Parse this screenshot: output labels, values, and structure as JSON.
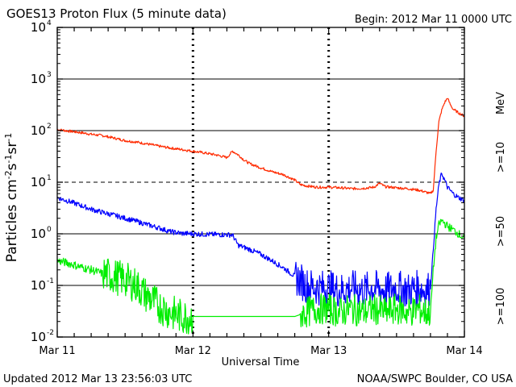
{
  "header": {
    "title": "GOES13 Proton Flux (5 minute data)",
    "begin": "Begin: 2012 Mar 11 0000 UTC"
  },
  "footer": {
    "updated": "Updated 2012 Mar 13 23:56:03 UTC",
    "credit": "NOAA/SWPC Boulder, CO USA"
  },
  "colors": {
    "ge10": "#ff2a00",
    "ge50": "#0000ff",
    "ge100": "#00ee00",
    "axis": "#000000"
  },
  "chart_data": {
    "type": "line",
    "title": "GOES13 Proton Flux (5 minute data)",
    "xlabel": "Universal Time",
    "ylabel": "Particles cm-2s-1sr-1",
    "yscale": "log",
    "ylim": [
      0.01,
      10000
    ],
    "xlim": [
      0,
      72
    ],
    "x_unit": "hours since 2012 Mar 11 0000 UTC",
    "x_ticks": [
      {
        "x": 0,
        "label": "Mar 11"
      },
      {
        "x": 24,
        "label": "Mar 12"
      },
      {
        "x": 48,
        "label": "Mar 13"
      },
      {
        "x": 72,
        "label": "Mar 14"
      }
    ],
    "y_ticks": [
      {
        "value": 0.01,
        "base": "10",
        "exp": "-2"
      },
      {
        "value": 0.1,
        "base": "10",
        "exp": "-1"
      },
      {
        "value": 1,
        "base": "10",
        "exp": "0"
      },
      {
        "value": 10,
        "base": "10",
        "exp": "1"
      },
      {
        "value": 100,
        "base": "10",
        "exp": "2"
      },
      {
        "value": 1000,
        "base": "10",
        "exp": "3"
      },
      {
        "value": 10000,
        "base": "10",
        "exp": "4"
      }
    ],
    "unit_label": "MeV",
    "threshold_line": 10,
    "series": [
      {
        "name": ">=10",
        "color": "#ff2a00",
        "x": [
          0,
          2,
          4,
          6,
          8,
          10,
          12,
          14,
          16,
          18,
          20,
          22,
          24,
          26,
          28,
          30,
          31,
          32,
          33,
          34,
          36,
          38,
          40,
          42,
          43,
          44,
          46,
          48,
          50,
          52,
          54,
          56,
          57,
          58,
          60,
          62,
          64,
          65,
          66,
          66.5,
          67,
          67.5,
          68,
          68.5,
          69,
          69.5,
          70,
          71,
          72
        ],
        "values": [
          105,
          98,
          92,
          85,
          80,
          72,
          64,
          60,
          55,
          50,
          46,
          43,
          40,
          37,
          34,
          30,
          40,
          34,
          27,
          23,
          19,
          16,
          14,
          11,
          9,
          8.5,
          8,
          8,
          7.8,
          7.5,
          7.6,
          8,
          9.5,
          8.2,
          7.8,
          7.5,
          7,
          6.5,
          6,
          7,
          40,
          150,
          250,
          350,
          430,
          320,
          260,
          220,
          190
        ]
      },
      {
        "name": ">=50",
        "color": "#0000ff",
        "x": [
          0,
          2,
          4,
          6,
          8,
          10,
          12,
          14,
          16,
          18,
          20,
          22,
          24,
          26,
          28,
          30,
          31,
          32,
          34,
          36,
          38,
          40,
          42,
          44,
          46,
          48,
          50,
          52,
          54,
          56,
          58,
          60,
          62,
          64,
          65,
          66,
          66.5,
          67,
          67.5,
          68,
          68.5,
          69,
          70,
          71,
          72
        ],
        "values": [
          5,
          4.3,
          3.6,
          3,
          2.6,
          2.3,
          2,
          1.75,
          1.5,
          1.3,
          1.1,
          1.02,
          1,
          0.98,
          0.97,
          0.96,
          0.95,
          0.6,
          0.5,
          0.4,
          0.3,
          0.22,
          0.15,
          0.1,
          0.09,
          0.09,
          0.08,
          0.09,
          0.08,
          0.09,
          0.08,
          0.09,
          0.08,
          0.09,
          0.08,
          0.09,
          0.5,
          3,
          9,
          15,
          11,
          8,
          6,
          5,
          4.5
        ]
      },
      {
        "name": ">=100",
        "color": "#00ee00",
        "x": [
          0,
          2,
          4,
          6,
          8,
          10,
          12,
          14,
          16,
          17,
          18,
          20,
          22,
          24,
          26,
          28,
          30,
          32,
          34,
          36,
          38,
          40,
          42,
          44,
          46,
          48,
          50,
          52,
          54,
          56,
          58,
          60,
          62,
          64,
          65,
          66,
          66.5,
          67,
          67.5,
          68,
          68.5,
          69,
          70,
          71,
          72
        ],
        "values": [
          0.3,
          0.27,
          0.23,
          0.2,
          0.17,
          0.15,
          0.13,
          0.1,
          0.06,
          0.05,
          0.04,
          0.03,
          0.025,
          0.025,
          0.025,
          0.025,
          0.025,
          0.025,
          0.025,
          0.025,
          0.025,
          0.025,
          0.025,
          0.03,
          0.035,
          0.035,
          0.03,
          0.035,
          0.03,
          0.035,
          0.03,
          0.035,
          0.03,
          0.035,
          0.03,
          0.03,
          0.2,
          0.8,
          1.5,
          1.8,
          1.6,
          1.4,
          1.2,
          1,
          0.8
        ]
      }
    ]
  }
}
